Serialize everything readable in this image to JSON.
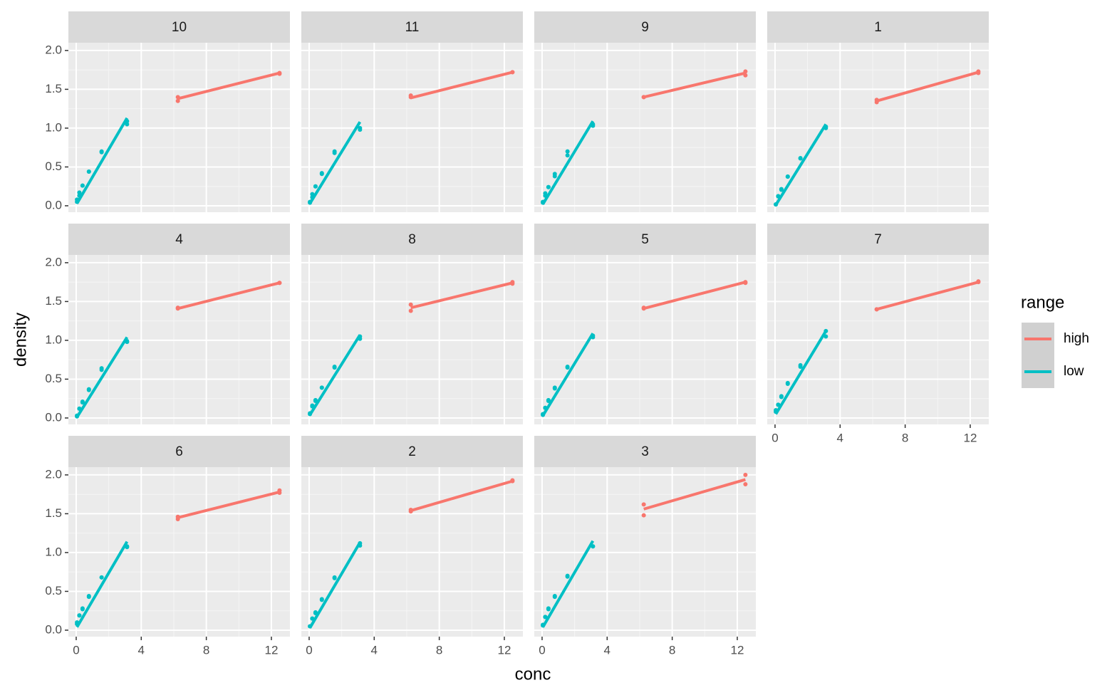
{
  "chart_data": {
    "type": "scatter",
    "x_label": "conc",
    "y_label": "density",
    "legend_title": "range",
    "xlim": [
      -0.48,
      13.14
    ],
    "ylim": [
      -0.083,
      2.1
    ],
    "xticks": [
      0,
      4,
      8,
      12
    ],
    "yticks": [
      {
        "value": 0,
        "label": "0.0"
      },
      {
        "value": 0.5,
        "label": "0.5"
      },
      {
        "value": 1,
        "label": "1.0"
      },
      {
        "value": 1.5,
        "label": "1.5"
      },
      {
        "value": 2,
        "label": "2.0"
      }
    ],
    "grid": true,
    "series": [
      {
        "name": "high",
        "color": "#F8766D"
      },
      {
        "name": "low",
        "color": "#00BFC4"
      }
    ],
    "panels": [
      {
        "title": "10",
        "series": [
          {
            "x": [
              6.25,
              6.25,
              12.5,
              12.5
            ],
            "values": [
              1.35,
              1.4,
              1.7,
              1.71
            ],
            "fit_x": [
              6.25,
              12.5
            ],
            "fit_values": [
              1.38,
              1.71
            ]
          },
          {
            "x": [
              0.0488,
              0.0488,
              0.1953,
              0.1953,
              0.3906,
              0.3906,
              0.7813,
              0.7813,
              1.5625,
              1.5625,
              3.125,
              3.125
            ],
            "values": [
              0.05,
              0.08,
              0.13,
              0.17,
              0.26,
              0.26,
              0.44,
              0.44,
              0.69,
              0.7,
              1.05,
              1.09
            ],
            "fit_x": [
              0.0488,
              3.125
            ],
            "fit_values": [
              0.03,
              1.13
            ]
          }
        ]
      },
      {
        "title": "11",
        "series": [
          {
            "x": [
              6.25,
              6.25,
              12.5,
              12.5
            ],
            "values": [
              1.4,
              1.42,
              1.72,
              1.72
            ],
            "fit_x": [
              6.25,
              12.5
            ],
            "fit_values": [
              1.39,
              1.72
            ]
          },
          {
            "x": [
              0.0488,
              0.0488,
              0.1953,
              0.1953,
              0.3906,
              0.3906,
              0.7813,
              0.7813,
              1.5625,
              1.5625,
              3.125,
              3.125
            ],
            "values": [
              0.04,
              0.05,
              0.11,
              0.15,
              0.25,
              0.25,
              0.42,
              0.41,
              0.7,
              0.68,
              0.98,
              1.0
            ],
            "fit_x": [
              0.0488,
              3.125
            ],
            "fit_values": [
              0.03,
              1.08
            ]
          }
        ]
      },
      {
        "title": "9",
        "series": [
          {
            "x": [
              6.25,
              6.25,
              12.5,
              12.5
            ],
            "values": [
              1.4,
              1.4,
              1.68,
              1.73
            ],
            "fit_x": [
              6.25,
              12.5
            ],
            "fit_values": [
              1.4,
              1.71
            ]
          },
          {
            "x": [
              0.0488,
              0.0488,
              0.1953,
              0.1953,
              0.3906,
              0.3906,
              0.7813,
              0.7813,
              1.5625,
              1.5625,
              3.125,
              3.125
            ],
            "values": [
              0.05,
              0.04,
              0.13,
              0.16,
              0.24,
              0.24,
              0.38,
              0.41,
              0.7,
              0.65,
              1.03,
              1.05
            ],
            "fit_x": [
              0.0488,
              3.125
            ],
            "fit_values": [
              0.02,
              1.09
            ]
          }
        ]
      },
      {
        "title": "1",
        "series": [
          {
            "x": [
              6.25,
              6.25,
              12.5,
              12.5
            ],
            "values": [
              1.334,
              1.364,
              1.73,
              1.71
            ],
            "fit_x": [
              6.25,
              12.5
            ],
            "fit_values": [
              1.35,
              1.72
            ]
          },
          {
            "x": [
              0.0488,
              0.0488,
              0.1953,
              0.1953,
              0.3906,
              0.3906,
              0.7813,
              0.7813,
              1.5625,
              1.5625,
              3.125,
              3.125
            ],
            "values": [
              0.017,
              0.018,
              0.121,
              0.124,
              0.206,
              0.215,
              0.377,
              0.374,
              0.614,
              0.609,
              1.019,
              1.001
            ],
            "fit_x": [
              0.0488,
              3.125
            ],
            "fit_values": [
              0.01,
              1.05
            ]
          }
        ]
      },
      {
        "title": "4",
        "series": [
          {
            "x": [
              6.25,
              6.25,
              12.5,
              12.5
            ],
            "values": [
              1.41,
              1.42,
              1.74,
              1.74
            ],
            "fit_x": [
              6.25,
              12.5
            ],
            "fit_values": [
              1.41,
              1.74
            ]
          },
          {
            "x": [
              0.0488,
              0.0488,
              0.1953,
              0.1953,
              0.3906,
              0.3906,
              0.7813,
              0.7813,
              1.5625,
              1.5625,
              3.125,
              3.125
            ],
            "values": [
              0.02,
              0.03,
              0.12,
              0.12,
              0.21,
              0.2,
              0.37,
              0.36,
              0.64,
              0.62,
              0.98,
              0.99
            ],
            "fit_x": [
              0.0488,
              3.125
            ],
            "fit_values": [
              0.01,
              1.04
            ]
          }
        ]
      },
      {
        "title": "8",
        "series": [
          {
            "x": [
              6.25,
              6.25,
              12.5,
              12.5
            ],
            "values": [
              1.38,
              1.46,
              1.73,
              1.75
            ],
            "fit_x": [
              6.25,
              12.5
            ],
            "fit_values": [
              1.42,
              1.74
            ]
          },
          {
            "x": [
              0.0488,
              0.0488,
              0.1953,
              0.1953,
              0.3906,
              0.3906,
              0.7813,
              0.7813,
              1.5625,
              1.5625,
              3.125,
              3.125
            ],
            "values": [
              0.05,
              0.06,
              0.15,
              0.16,
              0.23,
              0.22,
              0.39,
              0.39,
              0.65,
              0.66,
              1.02,
              1.05
            ],
            "fit_x": [
              0.0488,
              3.125
            ],
            "fit_values": [
              0.04,
              1.07
            ]
          }
        ]
      },
      {
        "title": "5",
        "series": [
          {
            "x": [
              6.25,
              6.25,
              12.5,
              12.5
            ],
            "values": [
              1.41,
              1.42,
              1.74,
              1.75
            ],
            "fit_x": [
              6.25,
              12.5
            ],
            "fit_values": [
              1.41,
              1.75
            ]
          },
          {
            "x": [
              0.0488,
              0.0488,
              0.1953,
              0.1953,
              0.3906,
              0.3906,
              0.7813,
              0.7813,
              1.5625,
              1.5625,
              3.125,
              3.125
            ],
            "values": [
              0.04,
              0.05,
              0.13,
              0.13,
              0.22,
              0.23,
              0.39,
              0.38,
              0.66,
              0.65,
              1.06,
              1.04
            ],
            "fit_x": [
              0.0488,
              3.125
            ],
            "fit_values": [
              0.03,
              1.09
            ]
          }
        ]
      },
      {
        "title": "7",
        "series": [
          {
            "x": [
              6.25,
              6.25,
              12.5,
              12.5
            ],
            "values": [
              1.4,
              1.4,
              1.75,
              1.76
            ],
            "fit_x": [
              6.25,
              12.5
            ],
            "fit_values": [
              1.4,
              1.75
            ]
          },
          {
            "x": [
              0.0488,
              0.0488,
              0.1953,
              0.1953,
              0.3906,
              0.3906,
              0.7813,
              0.7813,
              1.5625,
              1.5625,
              3.125,
              3.125
            ],
            "values": [
              0.08,
              0.1,
              0.17,
              0.17,
              0.28,
              0.27,
              0.44,
              0.45,
              0.68,
              0.66,
              1.05,
              1.12
            ],
            "fit_x": [
              0.0488,
              3.125
            ],
            "fit_values": [
              0.05,
              1.12
            ]
          }
        ]
      },
      {
        "title": "6",
        "series": [
          {
            "x": [
              6.25,
              6.25,
              12.5,
              12.5
            ],
            "values": [
              1.43,
              1.46,
              1.77,
              1.8
            ],
            "fit_x": [
              6.25,
              12.5
            ],
            "fit_values": [
              1.45,
              1.78
            ]
          },
          {
            "x": [
              0.0488,
              0.0488,
              0.1953,
              0.1953,
              0.3906,
              0.3906,
              0.7813,
              0.7813,
              1.5625,
              1.5625,
              3.125,
              3.125
            ],
            "values": [
              0.08,
              0.1,
              0.19,
              0.19,
              0.28,
              0.27,
              0.43,
              0.44,
              0.68,
              0.68,
              1.07,
              1.08
            ],
            "fit_x": [
              0.0488,
              3.125
            ],
            "fit_values": [
              0.04,
              1.14
            ]
          }
        ]
      },
      {
        "title": "2",
        "series": [
          {
            "x": [
              6.25,
              6.25,
              12.5,
              12.5
            ],
            "values": [
              1.53,
              1.55,
              1.92,
              1.93
            ],
            "fit_x": [
              6.25,
              12.5
            ],
            "fit_values": [
              1.54,
              1.92
            ]
          },
          {
            "x": [
              0.0488,
              0.0488,
              0.1953,
              0.1953,
              0.3906,
              0.3906,
              0.7813,
              0.7813,
              1.5625,
              1.5625,
              3.125,
              3.125
            ],
            "values": [
              0.05,
              0.05,
              0.15,
              0.15,
              0.22,
              0.23,
              0.39,
              0.4,
              0.68,
              0.67,
              1.09,
              1.12
            ],
            "fit_x": [
              0.0488,
              3.125
            ],
            "fit_values": [
              0.03,
              1.13
            ]
          }
        ]
      },
      {
        "title": "3",
        "series": [
          {
            "x": [
              6.25,
              6.25,
              12.5,
              12.5
            ],
            "values": [
              1.48,
              1.62,
              1.88,
              2.0
            ],
            "fit_x": [
              6.25,
              12.5
            ],
            "fit_values": [
              1.56,
              1.94
            ]
          },
          {
            "x": [
              0.0488,
              0.0488,
              0.1953,
              0.1953,
              0.3906,
              0.3906,
              0.7813,
              0.7813,
              1.5625,
              1.5625,
              3.125,
              3.125
            ],
            "values": [
              0.06,
              0.07,
              0.17,
              0.17,
              0.27,
              0.28,
              0.43,
              0.44,
              0.7,
              0.69,
              1.08,
              1.08
            ],
            "fit_x": [
              0.0488,
              3.125
            ],
            "fit_values": [
              0.04,
              1.15
            ]
          }
        ]
      }
    ]
  }
}
